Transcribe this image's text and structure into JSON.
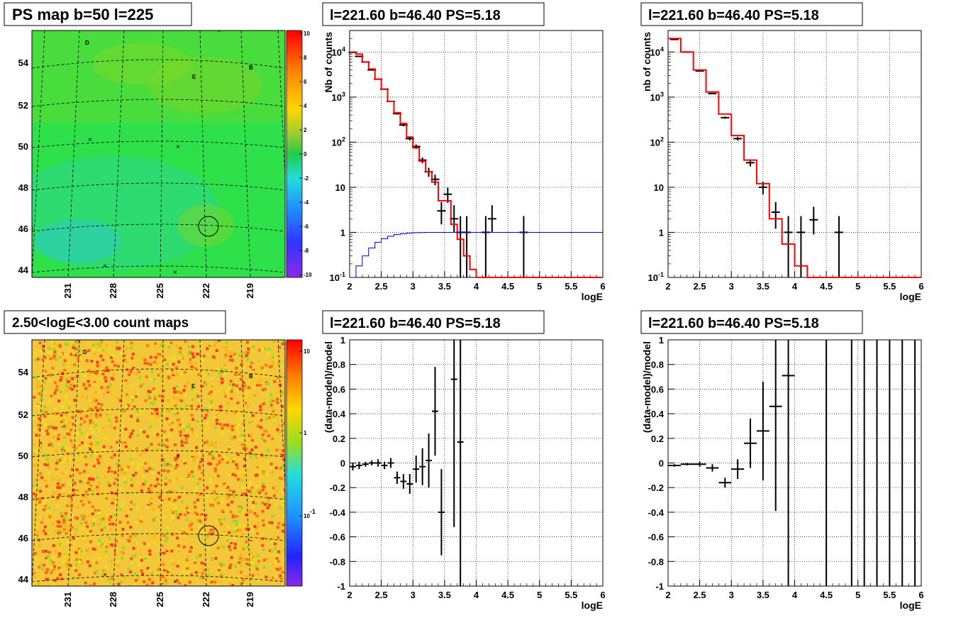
{
  "maps": [
    {
      "title": "PS map b=50 l=225",
      "kind": "ps",
      "y_ticks": [
        "44",
        "46",
        "48",
        "50",
        "52",
        "54"
      ],
      "x_ticks": [
        "231",
        "228",
        "225",
        "222",
        "219"
      ],
      "colorbar_ticks": [
        "10",
        "8",
        "6",
        "4",
        "2",
        "0",
        "-2",
        "-4",
        "-6",
        "-8",
        "-10"
      ],
      "markers": [
        "D",
        "E",
        "B"
      ]
    },
    {
      "title": "2.50<logE<3.00 count maps",
      "kind": "counts",
      "y_ticks": [
        "44",
        "46",
        "48",
        "50",
        "52",
        "54"
      ],
      "x_ticks": [
        "231",
        "228",
        "225",
        "222",
        "219"
      ],
      "colorbar_ticks": [
        "10",
        "1",
        "10^-1"
      ],
      "markers": [
        "D",
        "E",
        "B"
      ]
    }
  ],
  "chart_data": [
    {
      "type": "line",
      "title": "l=221.60 b=46.40 PS=5.18",
      "xlabel": "logE",
      "ylabel": "Nb of counts",
      "xlim": [
        2,
        6
      ],
      "ylim": [
        0.1,
        30000
      ],
      "log_y": true,
      "grid": true,
      "x_ticks": [
        "2",
        "2.5",
        "3",
        "3.5",
        "4",
        "4.5",
        "5",
        "5.5",
        "6"
      ],
      "y_ticks": [
        "10^-1",
        "1",
        "10",
        "10^2",
        "10^3",
        "10^4"
      ],
      "series": [
        {
          "kind": "data",
          "color": "#000000",
          "x": [
            2.05,
            2.15,
            2.25,
            2.35,
            2.45,
            2.55,
            2.65,
            2.75,
            2.85,
            2.95,
            3.05,
            3.15,
            3.25,
            3.35,
            3.45,
            3.55,
            3.65,
            3.75,
            3.85,
            4.15,
            4.25,
            4.75
          ],
          "y": [
            9800,
            8000,
            6000,
            4000,
            2500,
            1500,
            800,
            430,
            240,
            120,
            80,
            40,
            22,
            15,
            3,
            7,
            2,
            1,
            1,
            1,
            2,
            1
          ],
          "err_lo": [
            100,
            90,
            80,
            60,
            50,
            40,
            28,
            20,
            15,
            11,
            9,
            6,
            5,
            4,
            1.5,
            2.5,
            1,
            0.9,
            0.9,
            0.9,
            1,
            0.9
          ],
          "err_hi": [
            100,
            90,
            80,
            60,
            50,
            40,
            28,
            20,
            15,
            11,
            9,
            6,
            5,
            4,
            1.7,
            2.8,
            2,
            1.3,
            1.3,
            1.3,
            2,
            1.3
          ]
        },
        {
          "kind": "model",
          "color": "#ff0000",
          "step": true,
          "edges": [
            2.0,
            2.1,
            2.2,
            2.3,
            2.4,
            2.5,
            2.6,
            2.7,
            2.8,
            2.9,
            3.0,
            3.1,
            3.2,
            3.3,
            3.4,
            3.5,
            3.6,
            3.7,
            3.8,
            3.9,
            4.0,
            6.0
          ],
          "values": [
            10000,
            9000,
            6000,
            4200,
            2500,
            1500,
            800,
            450,
            260,
            130,
            75,
            38,
            22,
            13,
            5,
            5,
            1.5,
            0.7,
            0.3,
            0.15,
            0.1
          ]
        },
        {
          "kind": "model",
          "color": "#0000cc",
          "step": true,
          "edges": [
            2.0,
            2.1,
            2.2,
            2.3,
            2.4,
            2.5,
            2.6,
            2.7,
            2.8,
            2.9,
            3.0,
            3.1,
            3.2,
            3.3,
            6.0
          ],
          "values": [
            0.1,
            0.18,
            0.3,
            0.45,
            0.6,
            0.72,
            0.82,
            0.89,
            0.93,
            0.96,
            0.98,
            0.99,
            1.0,
            1.0
          ]
        }
      ]
    },
    {
      "type": "line",
      "title": "l=221.60 b=46.40 PS=5.18",
      "xlabel": "logE",
      "ylabel": "nb of counts",
      "xlim": [
        2,
        6
      ],
      "ylim": [
        0.1,
        30000
      ],
      "log_y": true,
      "grid": true,
      "x_ticks": [
        "2",
        "2.5",
        "3",
        "3.5",
        "4",
        "4.5",
        "5",
        "5.5",
        "6"
      ],
      "y_ticks": [
        "10^-1",
        "1",
        "10",
        "10^2",
        "10^3",
        "10^4"
      ],
      "series": [
        {
          "kind": "data",
          "color": "#000000",
          "x": [
            2.1,
            2.3,
            2.5,
            2.7,
            2.9,
            3.1,
            3.3,
            3.5,
            3.7,
            3.9,
            4.1,
            4.3,
            4.7
          ],
          "y": [
            19000,
            10000,
            3800,
            1200,
            350,
            120,
            35,
            10,
            2.8,
            1,
            1,
            1.9,
            1
          ],
          "err_lo": [
            140,
            100,
            60,
            35,
            19,
            11,
            6,
            3,
            1.6,
            0.9,
            0.9,
            1,
            0.9
          ],
          "err_hi": [
            140,
            100,
            60,
            35,
            19,
            11,
            6,
            3.3,
            1.9,
            1.3,
            1.3,
            1.8,
            1.3
          ]
        },
        {
          "kind": "model",
          "color": "#ff0000",
          "step": true,
          "edges": [
            2.0,
            2.2,
            2.4,
            2.6,
            2.8,
            3.0,
            3.2,
            3.4,
            3.6,
            3.8,
            4.0,
            4.2,
            6.0
          ],
          "values": [
            20000,
            10000,
            4000,
            1300,
            420,
            140,
            40,
            12,
            2,
            0.55,
            0.18,
            0.1
          ]
        }
      ]
    },
    {
      "type": "scatter",
      "title": "l=221.60 b=46.40 PS=5.18",
      "xlabel": "logE",
      "ylabel": "(data-model)/model",
      "xlim": [
        2,
        6
      ],
      "ylim": [
        -1,
        1
      ],
      "grid": true,
      "x_ticks": [
        "2",
        "2.5",
        "3",
        "3.5",
        "4",
        "4.5",
        "5",
        "5.5",
        "6"
      ],
      "y_ticks": [
        "-1",
        "-0.8",
        "-0.6",
        "-0.4",
        "-0.2",
        "0",
        "0.2",
        "0.4",
        "0.6",
        "0.8",
        "1"
      ],
      "series": [
        {
          "kind": "residual",
          "color": "#000000",
          "x": [
            2.05,
            2.15,
            2.25,
            2.35,
            2.45,
            2.55,
            2.65,
            2.75,
            2.85,
            2.95,
            3.05,
            3.15,
            3.25,
            3.35,
            3.45,
            3.65,
            3.75
          ],
          "y": [
            -0.03,
            -0.02,
            -0.01,
            0.0,
            0.0,
            -0.02,
            0.0,
            -0.12,
            -0.15,
            -0.17,
            -0.05,
            -0.03,
            0.02,
            0.42,
            -0.4,
            0.68,
            0.17
          ],
          "err": [
            0.03,
            0.03,
            0.02,
            0.02,
            0.03,
            0.03,
            0.04,
            0.05,
            0.06,
            0.08,
            0.11,
            0.15,
            0.22,
            0.36,
            0.35,
            1.2,
            1.2
          ],
          "xerr": [
            0.05,
            0.05,
            0.05,
            0.05,
            0.05,
            0.05,
            0.05,
            0.05,
            0.05,
            0.05,
            0.05,
            0.05,
            0.05,
            0.05,
            0.05,
            0.05,
            0.05
          ]
        }
      ]
    },
    {
      "type": "scatter",
      "title": "l=221.60 b=46.40 PS=5.18",
      "xlabel": "logE",
      "ylabel": "(data-model)/model",
      "xlim": [
        2,
        6
      ],
      "ylim": [
        -1,
        1
      ],
      "grid": true,
      "x_ticks": [
        "2",
        "2.5",
        "3",
        "3.5",
        "4",
        "4.5",
        "5",
        "5.5",
        "6"
      ],
      "y_ticks": [
        "-1",
        "-0.8",
        "-0.6",
        "-0.4",
        "-0.2",
        "0",
        "0.2",
        "0.4",
        "0.6",
        "0.8",
        "1"
      ],
      "series": [
        {
          "kind": "residual",
          "color": "#000000",
          "x": [
            2.1,
            2.3,
            2.5,
            2.7,
            2.9,
            3.1,
            3.3,
            3.5,
            3.7,
            3.9,
            4.5,
            4.9,
            5.1,
            5.3,
            5.5,
            5.7,
            5.9
          ],
          "y": [
            -0.02,
            -0.01,
            -0.01,
            -0.04,
            -0.16,
            -0.05,
            0.16,
            0.26,
            0.46,
            0.71,
            0.0,
            0.0,
            0.0,
            0.0,
            0.0,
            0.0,
            0.0
          ],
          "err": [
            0.01,
            0.01,
            0.02,
            0.03,
            0.04,
            0.08,
            0.2,
            0.4,
            0.85,
            1.8,
            3,
            3,
            3,
            3,
            3,
            3,
            3
          ],
          "xerr": [
            0.1,
            0.1,
            0.1,
            0.1,
            0.1,
            0.1,
            0.1,
            0.1,
            0.1,
            0.1,
            0,
            0,
            0,
            0,
            0,
            0,
            0
          ]
        }
      ]
    }
  ]
}
